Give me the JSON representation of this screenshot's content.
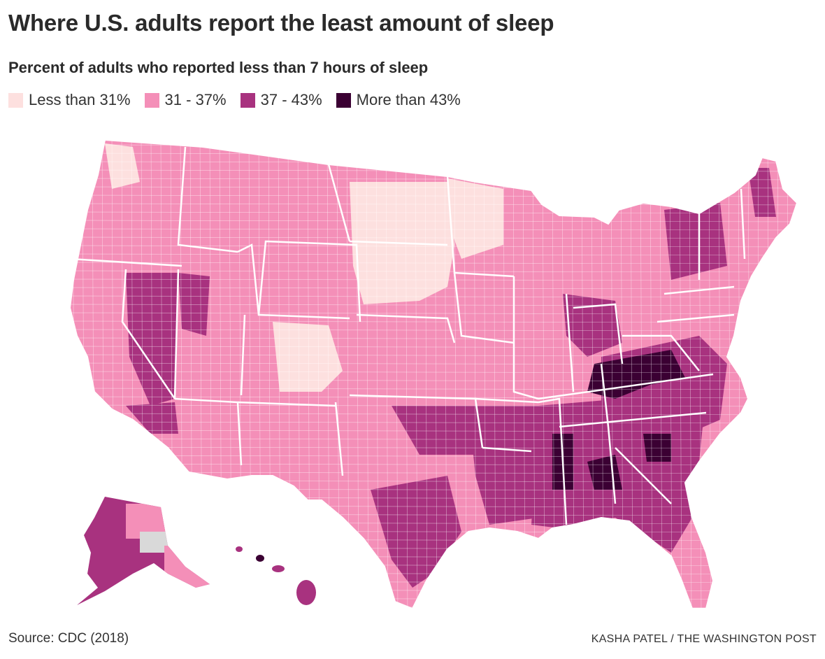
{
  "title": "Where U.S. adults report the least amount of sleep",
  "subtitle": "Percent of adults who reported less than 7 hours of sleep",
  "legend": [
    {
      "label": "Less than 31%",
      "color": "#fde0df"
    },
    {
      "label": "31 - 37%",
      "color": "#f48fb8"
    },
    {
      "label": "37 - 43%",
      "color": "#a8327f"
    },
    {
      "label": "More than 43%",
      "color": "#3b0033"
    }
  ],
  "map": {
    "type": "choropleth",
    "region": "U.S. counties",
    "no_data_color": "#d9d9d9",
    "border_color": "#ffffff",
    "regional_pattern": [
      {
        "region": "Northern Great Plains & Upper Midwest",
        "category": "Less than 31%"
      },
      {
        "region": "Central Rockies (Colorado/Utah)",
        "category": "Less than 31%"
      },
      {
        "region": "West Coast, Mountain West, Plains",
        "category": "31 - 37%"
      },
      {
        "region": "Nevada, Southeast, Texas, Appalachia, Michigan, New York",
        "category": "37 - 43%"
      },
      {
        "region": "Kentucky, West Virginia, Mississippi Delta, Alabama, Georgia",
        "category": "More than 43%"
      }
    ]
  },
  "footer": {
    "source": "Source: CDC (2018)",
    "credit": "KASHA PATEL / THE WASHINGTON POST"
  }
}
